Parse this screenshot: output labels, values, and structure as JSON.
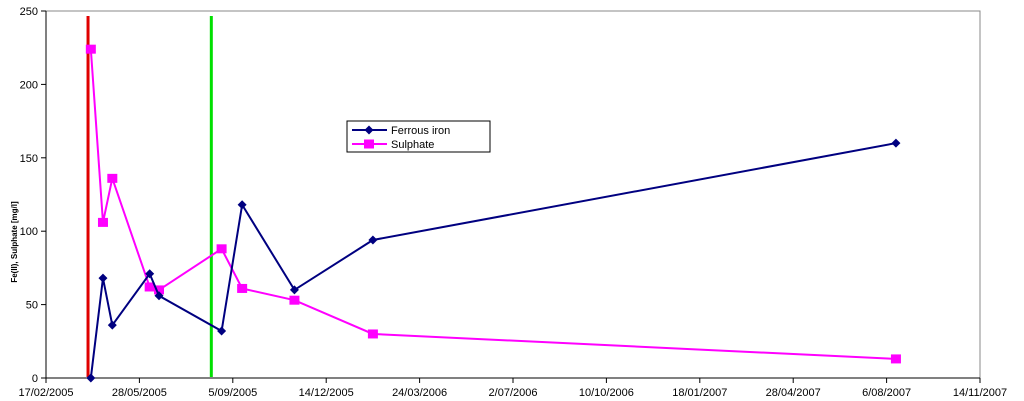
{
  "chart_data": {
    "type": "line",
    "title": "",
    "xlabel": "",
    "ylabel": "Fe(II), Sulphate [mg/l]",
    "ylim": [
      0,
      250
    ],
    "y_ticks": [
      0,
      50,
      100,
      150,
      200,
      250
    ],
    "xlim": [
      "2005-02-17",
      "2007-11-14"
    ],
    "x_ticks": [
      "17/02/2005",
      "28/05/2005",
      "5/09/2005",
      "14/12/2005",
      "24/03/2006",
      "2/07/2006",
      "10/10/2006",
      "18/01/2007",
      "28/04/2007",
      "6/08/2007",
      "14/11/2007"
    ],
    "grid": false,
    "legend_position": "center",
    "series": [
      {
        "name": "Ferrous iron",
        "color": "#000080",
        "marker": "diamond",
        "points": [
          {
            "x": "2005-04-06",
            "y": 0
          },
          {
            "x": "2005-04-19",
            "y": 68
          },
          {
            "x": "2005-04-29",
            "y": 36
          },
          {
            "x": "2005-06-08",
            "y": 71
          },
          {
            "x": "2005-06-18",
            "y": 56
          },
          {
            "x": "2005-08-24",
            "y": 32
          },
          {
            "x": "2005-09-15",
            "y": 118
          },
          {
            "x": "2005-11-10",
            "y": 60
          },
          {
            "x": "2006-02-02",
            "y": 94
          },
          {
            "x": "2007-08-16",
            "y": 160
          }
        ]
      },
      {
        "name": "Sulphate",
        "color": "#FF00FF",
        "marker": "square",
        "points": [
          {
            "x": "2005-04-06",
            "y": 224
          },
          {
            "x": "2005-04-19",
            "y": 106
          },
          {
            "x": "2005-04-29",
            "y": 136
          },
          {
            "x": "2005-06-08",
            "y": 62
          },
          {
            "x": "2005-06-18",
            "y": 60
          },
          {
            "x": "2005-08-24",
            "y": 88
          },
          {
            "x": "2005-09-15",
            "y": 61
          },
          {
            "x": "2005-11-10",
            "y": 53
          },
          {
            "x": "2006-02-02",
            "y": 30
          },
          {
            "x": "2007-08-16",
            "y": 13
          }
        ]
      }
    ],
    "vertical_lines": [
      {
        "x": "2005-04-03",
        "color": "#E00000"
      },
      {
        "x": "2005-08-13",
        "color": "#00E000"
      }
    ]
  }
}
